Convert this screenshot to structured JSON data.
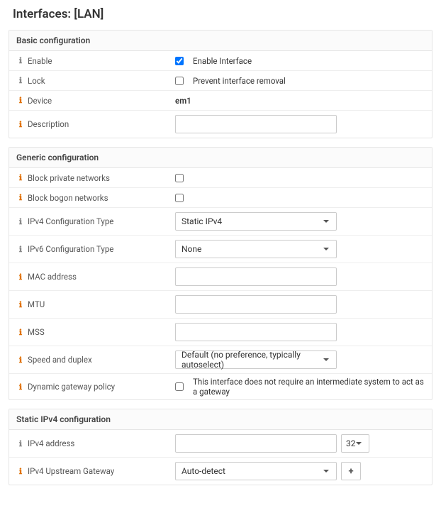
{
  "page": {
    "title": "Interfaces: [LAN]"
  },
  "sections": {
    "basic": {
      "title": "Basic configuration",
      "enable": {
        "label": "Enable",
        "checkbox_label": "Enable Interface",
        "checked": true,
        "icon": "gray"
      },
      "lock": {
        "label": "Lock",
        "checkbox_label": "Prevent interface removal",
        "checked": false,
        "icon": "gray"
      },
      "device": {
        "label": "Device",
        "value": "em1",
        "icon": "orange"
      },
      "description": {
        "label": "Description",
        "value": "",
        "icon": "orange"
      }
    },
    "generic": {
      "title": "Generic configuration",
      "block_private": {
        "label": "Block private networks",
        "checked": false,
        "icon": "orange"
      },
      "block_bogon": {
        "label": "Block bogon networks",
        "checked": false,
        "icon": "orange"
      },
      "ipv4_type": {
        "label": "IPv4 Configuration Type",
        "value": "Static IPv4",
        "icon": "gray"
      },
      "ipv6_type": {
        "label": "IPv6 Configuration Type",
        "value": "None",
        "icon": "gray"
      },
      "mac": {
        "label": "MAC address",
        "value": "",
        "icon": "orange"
      },
      "mtu": {
        "label": "MTU",
        "value": "",
        "icon": "orange"
      },
      "mss": {
        "label": "MSS",
        "value": "",
        "icon": "orange"
      },
      "speed": {
        "label": "Speed and duplex",
        "value": "Default (no preference, typically autoselect)",
        "icon": "orange"
      },
      "dyngw": {
        "label": "Dynamic gateway policy",
        "checkbox_label": "This interface does not require an intermediate system to act as a gateway",
        "checked": false,
        "icon": "orange"
      }
    },
    "static_ipv4": {
      "title": "Static IPv4 configuration",
      "address": {
        "label": "IPv4 address",
        "value": "",
        "prefix": "32",
        "icon": "gray"
      },
      "gateway": {
        "label": "IPv4 Upstream Gateway",
        "value": "Auto-detect",
        "icon": "orange"
      }
    }
  },
  "colors": {
    "icon_gray": "#888888",
    "icon_orange": "#e07000",
    "border": "#e5e5e5",
    "text": "#333333"
  }
}
